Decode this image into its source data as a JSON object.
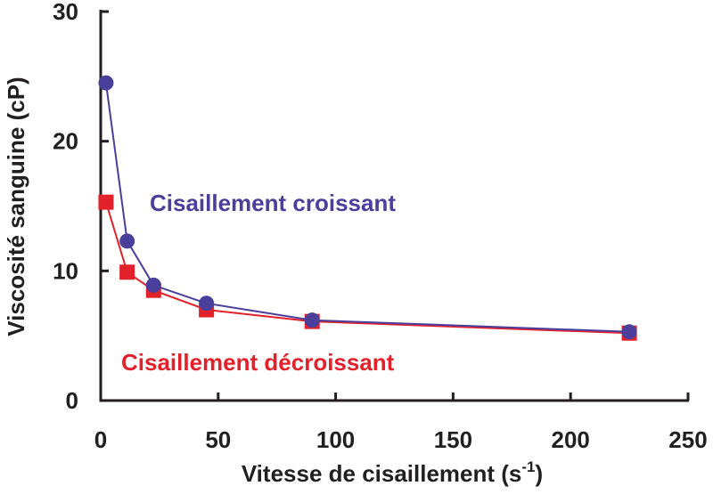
{
  "chart_data": {
    "type": "line",
    "xlabel": "Vitesse de cisaillement (s",
    "xlabel_sup": "-1",
    "xlabel_end": ")",
    "ylabel": "Viscosité sanguine (cP)",
    "xlim": [
      0,
      250
    ],
    "ylim": [
      0,
      30
    ],
    "x_ticks": [
      "0",
      "50",
      "100",
      "150",
      "200",
      "250"
    ],
    "x_tick_values": [
      0,
      50,
      100,
      150,
      200,
      250
    ],
    "y_ticks": [
      "0",
      "10",
      "20",
      "30"
    ],
    "y_tick_values": [
      0,
      10,
      20,
      30
    ],
    "grid": false,
    "series": [
      {
        "name": "Cisaillement croissant",
        "color": "#4a3f9a",
        "marker": "circle",
        "x": [
          2.25,
          11.25,
          22.5,
          45,
          90,
          225
        ],
        "y": [
          24.5,
          12.3,
          8.9,
          7.5,
          6.2,
          5.3
        ]
      },
      {
        "name": "Cisaillement décroissant",
        "color": "#e2212b",
        "marker": "square",
        "x": [
          2.25,
          11.25,
          22.5,
          45,
          90,
          225
        ],
        "y": [
          15.3,
          9.9,
          8.5,
          7.0,
          6.1,
          5.2
        ]
      }
    ]
  }
}
